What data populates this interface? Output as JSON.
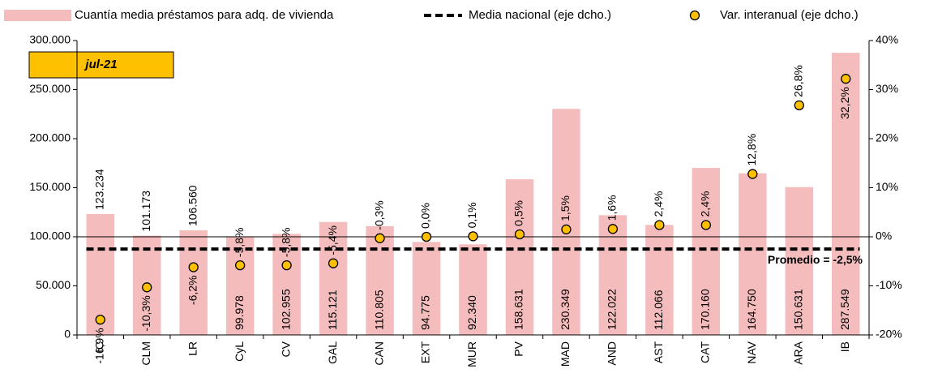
{
  "chart_data": {
    "type": "bar",
    "annotation": "jul-21",
    "categories": [
      "IC",
      "CLM",
      "LR",
      "CyL",
      "CV",
      "GAL",
      "CAN",
      "EXT",
      "MUR",
      "PV",
      "MAD",
      "AND",
      "AST",
      "CAT",
      "NAV",
      "ARA",
      "IB"
    ],
    "series": [
      {
        "name": "Cuantía media préstamos para adq. de vivienda",
        "color": "#f4bcbc",
        "values": [
          123234,
          101173,
          106560,
          99978,
          102955,
          115121,
          110805,
          94775,
          92340,
          158631,
          230349,
          122022,
          112066,
          170160,
          164750,
          150631,
          287549
        ],
        "value_labels": [
          "123.234",
          "101.173",
          "106.560",
          "99.978",
          "102.955",
          "115.121",
          "110.805",
          "94.775",
          "92.340",
          "158.631",
          "230.349",
          "122.022",
          "112.066",
          "170.160",
          "164.750",
          "150.631",
          "287.549"
        ]
      },
      {
        "name": "Var. interanual (eje dcho.)",
        "color": "#ffc000",
        "type": "scatter",
        "axis": "y2",
        "values": [
          -16.9,
          -10.3,
          -6.2,
          -5.8,
          -5.8,
          -5.4,
          -0.3,
          0.0,
          0.1,
          0.5,
          1.5,
          1.6,
          2.4,
          2.4,
          12.8,
          26.8,
          32.2
        ],
        "value_labels": [
          "-16,9%",
          "-10,3%",
          "-6,2%",
          "-5,8%",
          "-5,8%",
          "-5,4%",
          "-0,3%",
          "0,0%",
          "0,1%",
          "0,5%",
          "1,5%",
          "1,6%",
          "2,4%",
          "2,4%",
          "12,8%",
          "26,8%",
          "32,2%"
        ]
      }
    ],
    "reference_line": {
      "name": "Media nacional (eje dcho.)",
      "value": -2.5,
      "axis": "y2",
      "label": "Promedio = -2,5%",
      "color": "#000000"
    },
    "ylim": [
      0,
      300000
    ],
    "yticks": [
      {
        "value": 0,
        "label": "0"
      },
      {
        "value": 50000,
        "label": "50.000"
      },
      {
        "value": 100000,
        "label": "100.000"
      },
      {
        "value": 150000,
        "label": "150.000"
      },
      {
        "value": 200000,
        "label": "200.000"
      },
      {
        "value": 250000,
        "label": "250.000"
      },
      {
        "value": 300000,
        "label": "300.000"
      }
    ],
    "y2lim": [
      -20,
      40
    ],
    "y2ticks": [
      {
        "value": -20,
        "label": "-20%"
      },
      {
        "value": -10,
        "label": "-10%"
      },
      {
        "value": 0,
        "label": "0%"
      },
      {
        "value": 10,
        "label": "10%"
      },
      {
        "value": 20,
        "label": "20%"
      },
      {
        "value": 30,
        "label": "30%"
      },
      {
        "value": 40,
        "label": "40%"
      }
    ]
  }
}
